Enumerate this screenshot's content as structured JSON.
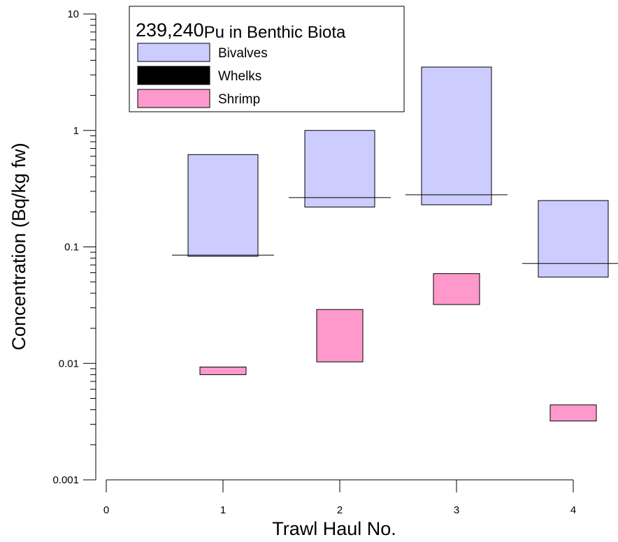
{
  "chart_data": {
    "type": "floating-bar",
    "title": "239,240Pu in Benthic Biota",
    "title_superscript": "239,240",
    "title_main": "Pu in Benthic Biota",
    "xlabel": "Trawl Haul No.",
    "ylabel": "Concentration (Bq/kg fw)",
    "xlim": [
      0,
      4
    ],
    "x_ticks": [
      "0",
      "1",
      "2",
      "3",
      "4"
    ],
    "ylim": [
      0.001,
      10
    ],
    "y_scale": "log",
    "y_ticks": [
      "0.001",
      "0.01",
      "0.1",
      "1",
      "10"
    ],
    "legend_position": "top-left",
    "series": [
      {
        "name": "Bivalves",
        "color": "#ccccff",
        "ranges": [
          {
            "x": 1,
            "low": 0.083,
            "high": 0.62
          },
          {
            "x": 2,
            "low": 0.22,
            "high": 1.0
          },
          {
            "x": 3,
            "low": 0.23,
            "high": 3.5
          },
          {
            "x": 4,
            "low": 0.055,
            "high": 0.25
          }
        ]
      },
      {
        "name": "Whelks",
        "color": "#000000",
        "ranges": [
          {
            "x": 1,
            "low": 0.085,
            "high": 0.085
          },
          {
            "x": 2,
            "low": 0.265,
            "high": 0.265
          },
          {
            "x": 3,
            "low": 0.28,
            "high": 0.28
          },
          {
            "x": 4,
            "low": 0.072,
            "high": 0.072
          }
        ]
      },
      {
        "name": "Shrimp",
        "color": "#ff99cc",
        "ranges": [
          {
            "x": 1,
            "low": 0.008,
            "high": 0.0093
          },
          {
            "x": 2,
            "low": 0.0103,
            "high": 0.029
          },
          {
            "x": 3,
            "low": 0.032,
            "high": 0.059
          },
          {
            "x": 4,
            "low": 0.0032,
            "high": 0.0044
          }
        ]
      }
    ]
  }
}
